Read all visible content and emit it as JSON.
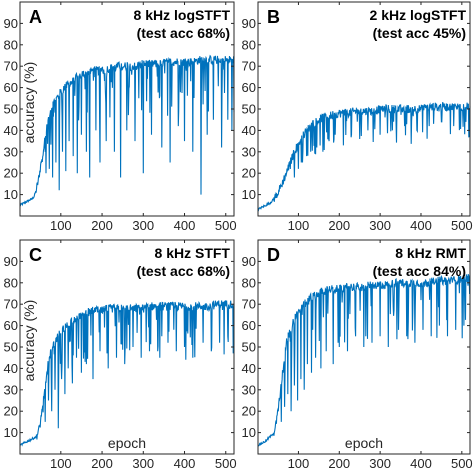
{
  "chart_data": [
    {
      "type": "line",
      "letter": "A",
      "title_lines": [
        "8 kHz logSTFT",
        "(test acc 68%)"
      ],
      "ylabel": "accuracy (%)",
      "xlabel": "",
      "xlim": [
        1,
        520
      ],
      "ylim": [
        0,
        100
      ],
      "xticks": [
        100,
        200,
        300,
        400,
        500
      ],
      "yticks": [
        10,
        20,
        30,
        40,
        50,
        60,
        70,
        80,
        90
      ],
      "color": "#0072BD",
      "series": [
        {
          "x": [
            1,
            10,
            20,
            30,
            35,
            40,
            45,
            50,
            55,
            60,
            65,
            70,
            75,
            80,
            90,
            100,
            110,
            120,
            130,
            140,
            150,
            160,
            180,
            200,
            220,
            240,
            260,
            280,
            300,
            320,
            340,
            360,
            380,
            400,
            420,
            440,
            460,
            480,
            500,
            520
          ],
          "y": [
            5,
            6,
            7,
            8,
            9,
            12,
            16,
            22,
            28,
            34,
            40,
            45,
            48,
            52,
            55,
            58,
            60,
            62,
            63,
            65,
            66,
            67,
            68,
            68,
            69,
            70,
            70,
            70,
            71,
            71,
            71,
            72,
            72,
            72,
            72,
            73,
            73,
            73,
            73,
            73
          ],
          "dips": [
            [
              64,
              20
            ],
            [
              72,
              22
            ],
            [
              80,
              18
            ],
            [
              88,
              25
            ],
            [
              96,
              12
            ],
            [
              104,
              30
            ],
            [
              112,
              21
            ],
            [
              120,
              35
            ],
            [
              130,
              28
            ],
            [
              140,
              20
            ],
            [
              150,
              38
            ],
            [
              162,
              30
            ],
            [
              170,
              18
            ],
            [
              185,
              40
            ],
            [
              195,
              25
            ],
            [
              210,
              35
            ],
            [
              230,
              30
            ],
            [
              245,
              18
            ],
            [
              260,
              40
            ],
            [
              280,
              35
            ],
            [
              300,
              20
            ],
            [
              320,
              38
            ],
            [
              345,
              32
            ],
            [
              365,
              25
            ],
            [
              385,
              42
            ],
            [
              400,
              35
            ],
            [
              420,
              30
            ],
            [
              440,
              10
            ],
            [
              455,
              38
            ],
            [
              470,
              45
            ],
            [
              490,
              32
            ],
            [
              505,
              45
            ],
            [
              515,
              40
            ]
          ]
        }
      ]
    },
    {
      "type": "line",
      "letter": "B",
      "title_lines": [
        "2 kHz logSTFT",
        "(test acc 45%)"
      ],
      "ylabel": "",
      "xlabel": "",
      "xlim": [
        1,
        520
      ],
      "ylim": [
        0,
        100
      ],
      "xticks": [
        100,
        200,
        300,
        400,
        500
      ],
      "yticks": [
        10,
        20,
        30,
        40,
        50,
        60,
        70,
        80,
        90
      ],
      "color": "#0072BD",
      "series": [
        {
          "x": [
            1,
            10,
            20,
            30,
            40,
            50,
            60,
            70,
            80,
            90,
            100,
            110,
            120,
            130,
            140,
            160,
            180,
            200,
            220,
            240,
            260,
            280,
            300,
            320,
            340,
            360,
            380,
            400,
            420,
            440,
            460,
            480,
            500,
            520
          ],
          "y": [
            3,
            4,
            5,
            6,
            8,
            11,
            15,
            20,
            25,
            30,
            34,
            37,
            40,
            42,
            44,
            46,
            47,
            48,
            48,
            49,
            49,
            49,
            50,
            50,
            50,
            50,
            50,
            50,
            51,
            51,
            51,
            51,
            51,
            51
          ],
          "dips": [
            [
              90,
              18
            ],
            [
              100,
              22
            ],
            [
              110,
              25
            ],
            [
              120,
              28
            ],
            [
              130,
              30
            ],
            [
              145,
              32
            ],
            [
              160,
              30
            ],
            [
              175,
              35
            ],
            [
              190,
              38
            ],
            [
              210,
              33
            ],
            [
              230,
              38
            ],
            [
              250,
              36
            ],
            [
              270,
              40
            ],
            [
              300,
              38
            ],
            [
              330,
              40
            ],
            [
              360,
              42
            ],
            [
              390,
              40
            ],
            [
              420,
              42
            ],
            [
              450,
              44
            ],
            [
              480,
              42
            ],
            [
              510,
              44
            ]
          ]
        }
      ]
    },
    {
      "type": "line",
      "letter": "C",
      "title_lines": [
        "8 kHz STFT",
        "(test acc 68%)"
      ],
      "ylabel": "accuracy (%)",
      "xlabel": "epoch",
      "xlim": [
        1,
        520
      ],
      "ylim": [
        0,
        100
      ],
      "xticks": [
        100,
        200,
        300,
        400,
        500
      ],
      "yticks": [
        10,
        20,
        30,
        40,
        50,
        60,
        70,
        80,
        90
      ],
      "color": "#0072BD",
      "series": [
        {
          "x": [
            1,
            10,
            20,
            30,
            40,
            45,
            50,
            55,
            60,
            65,
            70,
            80,
            90,
            100,
            110,
            120,
            130,
            140,
            150,
            160,
            180,
            200,
            220,
            240,
            260,
            280,
            300,
            320,
            340,
            360,
            380,
            400,
            420,
            440,
            460,
            480,
            500,
            520
          ],
          "y": [
            4,
            5,
            6,
            7,
            8,
            10,
            14,
            20,
            28,
            36,
            44,
            50,
            54,
            57,
            59,
            61,
            63,
            64,
            65,
            66,
            67,
            67,
            68,
            68,
            68,
            68,
            68,
            69,
            69,
            69,
            69,
            69,
            69,
            69,
            69,
            70,
            70,
            70
          ],
          "dips": [
            [
              62,
              15
            ],
            [
              70,
              25
            ],
            [
              78,
              20
            ],
            [
              86,
              30
            ],
            [
              94,
              12
            ],
            [
              102,
              35
            ],
            [
              110,
              28
            ],
            [
              118,
              40
            ],
            [
              128,
              33
            ],
            [
              138,
              45
            ],
            [
              150,
              38
            ],
            [
              162,
              42
            ],
            [
              178,
              35
            ],
            [
              195,
              48
            ],
            [
              215,
              40
            ],
            [
              235,
              45
            ],
            [
              255,
              42
            ],
            [
              275,
              50
            ],
            [
              295,
              45
            ],
            [
              315,
              48
            ],
            [
              340,
              45
            ],
            [
              360,
              52
            ],
            [
              380,
              48
            ],
            [
              400,
              50
            ],
            [
              420,
              45
            ],
            [
              445,
              52
            ],
            [
              465,
              48
            ],
            [
              485,
              52
            ],
            [
              505,
              55
            ]
          ]
        }
      ]
    },
    {
      "type": "line",
      "letter": "D",
      "title_lines": [
        "8 kHz RMT",
        "(test acc 84%)"
      ],
      "ylabel": "",
      "xlabel": "epoch",
      "xlim": [
        1,
        520
      ],
      "ylim": [
        0,
        100
      ],
      "xticks": [
        100,
        200,
        300,
        400,
        500
      ],
      "yticks": [
        10,
        20,
        30,
        40,
        50,
        60,
        70,
        80,
        90
      ],
      "color": "#0072BD",
      "series": [
        {
          "x": [
            1,
            10,
            20,
            30,
            40,
            45,
            50,
            55,
            60,
            65,
            70,
            80,
            90,
            100,
            110,
            120,
            130,
            140,
            150,
            160,
            180,
            200,
            220,
            240,
            260,
            280,
            300,
            320,
            340,
            360,
            380,
            400,
            420,
            440,
            460,
            480,
            500,
            520
          ],
          "y": [
            4,
            5,
            6,
            8,
            10,
            14,
            20,
            28,
            36,
            44,
            52,
            58,
            63,
            66,
            69,
            71,
            73,
            74,
            75,
            76,
            77,
            77,
            78,
            78,
            78,
            79,
            79,
            79,
            80,
            80,
            80,
            80,
            80,
            81,
            81,
            81,
            82,
            82
          ],
          "dips": [
            [
              58,
              15
            ],
            [
              66,
              22
            ],
            [
              74,
              28
            ],
            [
              82,
              20
            ],
            [
              90,
              32
            ],
            [
              98,
              25
            ],
            [
              106,
              35
            ],
            [
              114,
              30
            ],
            [
              122,
              42
            ],
            [
              132,
              38
            ],
            [
              142,
              45
            ],
            [
              155,
              40
            ],
            [
              168,
              48
            ],
            [
              185,
              42
            ],
            [
              200,
              50
            ],
            [
              220,
              48
            ],
            [
              240,
              55
            ],
            [
              260,
              50
            ],
            [
              280,
              52
            ],
            [
              300,
              55
            ],
            [
              320,
              50
            ],
            [
              345,
              58
            ],
            [
              365,
              55
            ],
            [
              385,
              52
            ],
            [
              405,
              58
            ],
            [
              425,
              55
            ],
            [
              445,
              60
            ],
            [
              465,
              55
            ],
            [
              485,
              58
            ],
            [
              505,
              60
            ]
          ]
        }
      ]
    }
  ]
}
